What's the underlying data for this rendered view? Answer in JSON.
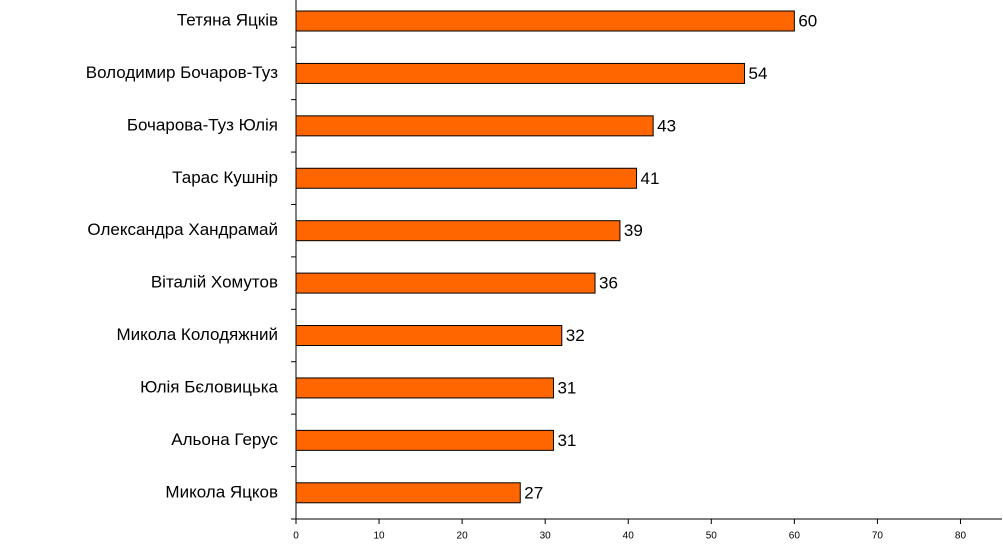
{
  "chart_data": {
    "type": "bar",
    "orientation": "horizontal",
    "categories": [
      "Тетяна Яцків",
      "Володимир Бочаров-Туз",
      "Бочарова-Туз Юлія",
      "Тарас Кушнір",
      "Олександра Хандрамай",
      "Віталій Хомутов",
      "Микола Колодяжний",
      "Юлія Бєловицька",
      "Альона Герус",
      "Микола Яцков"
    ],
    "values": [
      60,
      54,
      43,
      41,
      39,
      36,
      32,
      31,
      31,
      27
    ],
    "color": "#ff6600",
    "xlim": [
      0,
      85
    ],
    "xticks": [
      0,
      10,
      20,
      30,
      40,
      50,
      60,
      70,
      80
    ],
    "grid": false
  }
}
